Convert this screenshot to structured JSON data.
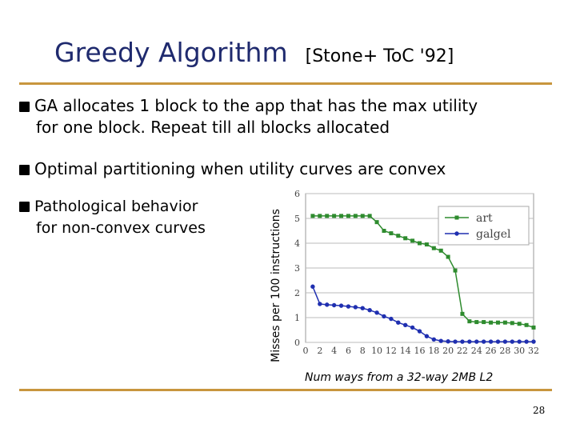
{
  "slide": {
    "title": "Greedy Algorithm",
    "reference": "[Stone+ ToC '92]",
    "bullets": [
      {
        "line1": "GA allocates 1 block to the app that has the max utility",
        "line2": "for one block. Repeat till all blocks allocated"
      },
      {
        "line1": "Optimal partitioning when utility curves are convex"
      },
      {
        "line1": "Pathological behavior",
        "line2": "for non-convex curves"
      }
    ],
    "page_number": "28",
    "colors": {
      "title": "#1f2a6e",
      "rule": "#c8963e"
    }
  },
  "chart_data": {
    "type": "line",
    "xlabel": "Num ways from a 32-way 2MB L2",
    "ylabel": "Misses per 100 instructions",
    "xlim": [
      0,
      32
    ],
    "ylim": [
      0,
      6
    ],
    "xticks": [
      "0",
      "2",
      "4",
      "6",
      "8",
      "10",
      "12",
      "14",
      "16",
      "18",
      "20",
      "22",
      "24",
      "26",
      "28",
      "30",
      "32"
    ],
    "yticks": [
      "0",
      "1",
      "2",
      "3",
      "4",
      "5",
      "6"
    ],
    "grid": true,
    "legend_position": "top-right",
    "x": [
      1,
      2,
      3,
      4,
      5,
      6,
      7,
      8,
      9,
      10,
      11,
      12,
      13,
      14,
      15,
      16,
      17,
      18,
      19,
      20,
      21,
      22,
      23,
      24,
      25,
      26,
      27,
      28,
      29,
      30,
      31,
      32
    ],
    "series": [
      {
        "name": "art",
        "color": "#2e8b2e",
        "marker": "square",
        "values": [
          5.1,
          5.1,
          5.1,
          5.1,
          5.1,
          5.1,
          5.1,
          5.1,
          5.1,
          4.85,
          4.5,
          4.4,
          4.3,
          4.2,
          4.1,
          4.0,
          3.95,
          3.8,
          3.7,
          3.45,
          2.9,
          1.15,
          0.85,
          0.82,
          0.82,
          0.8,
          0.8,
          0.8,
          0.78,
          0.75,
          0.7,
          0.6
        ]
      },
      {
        "name": "galgel",
        "color": "#1f2fb0",
        "marker": "circle",
        "values": [
          2.25,
          1.55,
          1.52,
          1.5,
          1.48,
          1.45,
          1.42,
          1.38,
          1.3,
          1.2,
          1.05,
          0.95,
          0.8,
          0.7,
          0.6,
          0.45,
          0.25,
          0.12,
          0.06,
          0.04,
          0.03,
          0.03,
          0.03,
          0.03,
          0.03,
          0.03,
          0.03,
          0.03,
          0.03,
          0.03,
          0.03,
          0.03
        ]
      }
    ]
  }
}
